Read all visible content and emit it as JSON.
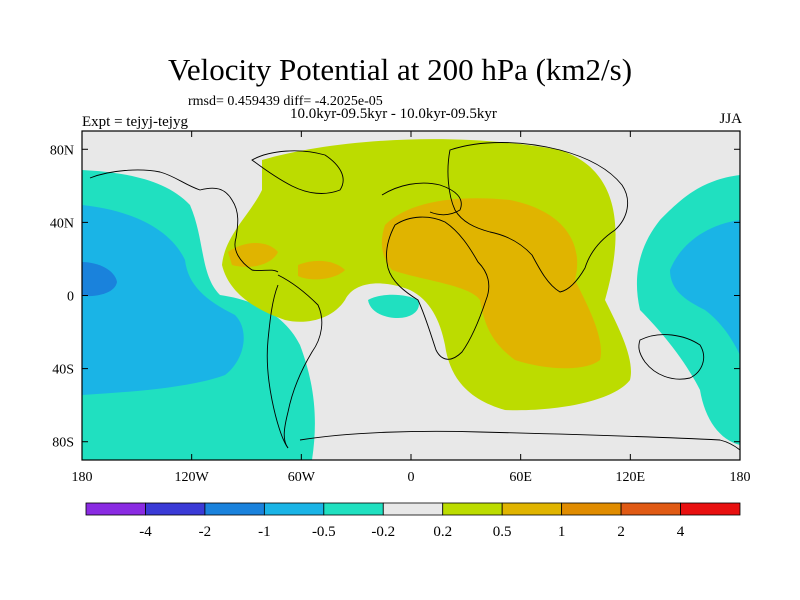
{
  "title": "Velocity Potential at 200 hPa (km2/s)",
  "stats": "rmsd= 0.459439 diff= -4.2025e-05",
  "period": "10.0kyr-09.5kyr - 10.0kyr-09.5kyr",
  "expt": "Expt = tejyj-tejyg",
  "season": "JJA",
  "lon_ticks": [
    {
      "lon": -180,
      "label": "180"
    },
    {
      "lon": -120,
      "label": "120W"
    },
    {
      "lon": -60,
      "label": "60W"
    },
    {
      "lon": 0,
      "label": "0"
    },
    {
      "lon": 60,
      "label": "60E"
    },
    {
      "lon": 120,
      "label": "120E"
    },
    {
      "lon": 180,
      "label": "180"
    }
  ],
  "lat_ticks": [
    {
      "lat": 80,
      "label": "80N"
    },
    {
      "lat": 40,
      "label": "40N"
    },
    {
      "lat": 0,
      "label": "0"
    },
    {
      "lat": -40,
      "label": "40S"
    },
    {
      "lat": -80,
      "label": "80S"
    }
  ],
  "colorbar": {
    "colors": [
      "#8a2be2",
      "#3a3ad6",
      "#1a82dc",
      "#1ab4e6",
      "#20e0c0",
      "#e8e8e8",
      "#bcdc00",
      "#e0b400",
      "#e08c00",
      "#e05a14",
      "#e81010"
    ],
    "labels": [
      "-4",
      "-2",
      "-1",
      "-0.5",
      "-0.2",
      "0.2",
      "0.5",
      "1",
      "2",
      "4"
    ]
  },
  "colors": {
    "background": "#e8e8e8",
    "coast": "#000000"
  }
}
